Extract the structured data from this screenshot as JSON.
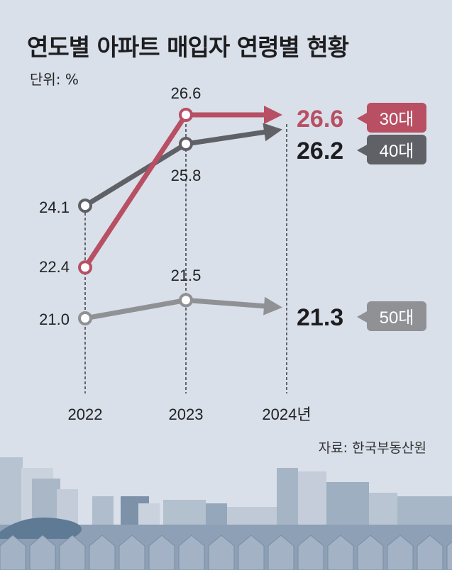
{
  "title": "연도별 아파트 매입자 연령별 현황",
  "unit": "단위: %",
  "source": "자료: 한국부동산원",
  "chart_data": {
    "type": "line",
    "title": "연도별 아파트 매입자 연령별 현황",
    "ylabel": "단위: %",
    "categories": [
      "2022",
      "2023",
      "2024년"
    ],
    "series": [
      {
        "name": "30대",
        "values": [
          22.4,
          26.6,
          26.6
        ],
        "labels": [
          "22.4",
          "26.6",
          "26.6"
        ],
        "color": "#b84f63",
        "text_color": "#b84f63"
      },
      {
        "name": "40대",
        "values": [
          24.1,
          25.8,
          26.2
        ],
        "labels": [
          "24.1",
          "25.8",
          "26.2"
        ],
        "color": "#5f6166",
        "text_color": "#1d1d1f"
      },
      {
        "name": "50대",
        "values": [
          21.0,
          21.5,
          21.3
        ],
        "labels": [
          "21.0",
          "21.5",
          "21.3"
        ],
        "color": "#8f9195",
        "text_color": "#1d1d1f"
      }
    ],
    "ylim": [
      18.5,
      27.5
    ],
    "grid": false,
    "legend": "right"
  }
}
